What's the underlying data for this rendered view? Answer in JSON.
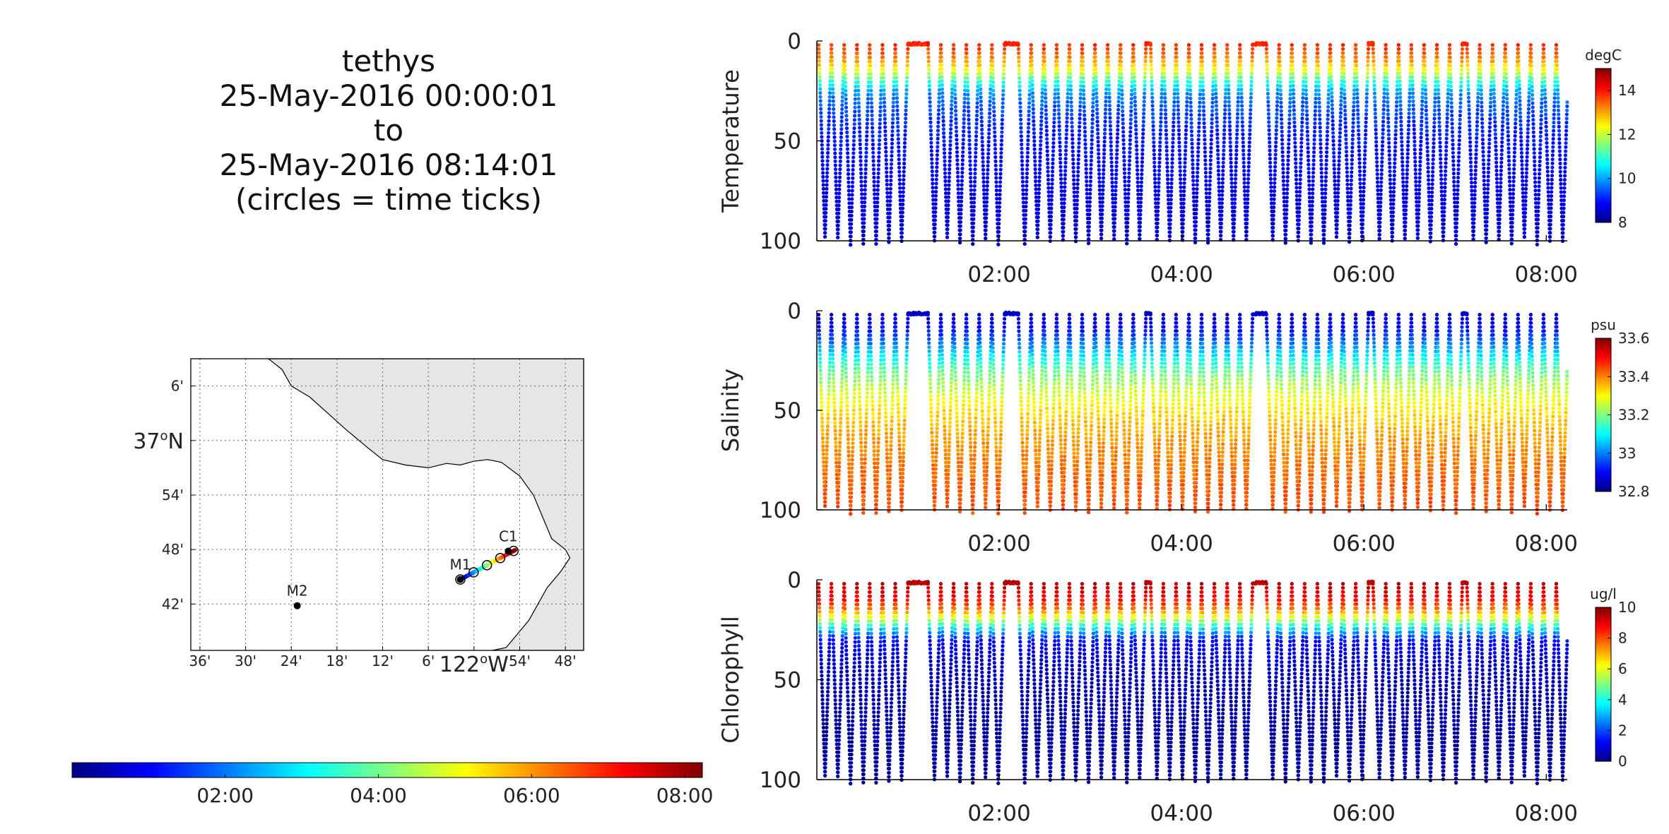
{
  "title": {
    "lines": [
      "tethys",
      "25-May-2016 00:00:01",
      "to",
      "25-May-2016 08:14:01",
      "(circles = time ticks)"
    ]
  },
  "colors": {
    "land": "#e6e6e6",
    "jet": [
      "#00007f",
      "#0000ff",
      "#007fff",
      "#00ffff",
      "#7fff7f",
      "#ffff00",
      "#ff7f00",
      "#ff0000",
      "#7f0000"
    ]
  },
  "chart_data": [
    {
      "type": "map",
      "lat_ticks": [
        "6'",
        "37°N",
        "54'",
        "48'",
        "42'"
      ],
      "lon_ticks": [
        "36'",
        "30'",
        "24'",
        "18'",
        "12'",
        "6'",
        "122°W",
        "54'",
        "48'"
      ],
      "grid": true,
      "stations": [
        {
          "name": "M2",
          "lon": -122.387,
          "lat": 36.697
        },
        {
          "name": "M1",
          "lon": -122.03,
          "lat": 36.745
        },
        {
          "name": "C1",
          "lon": -121.925,
          "lat": 36.797
        }
      ],
      "track": {
        "start": {
          "lon": -122.03,
          "lat": 36.745
        },
        "end": {
          "lon": -121.91,
          "lat": 36.799
        }
      }
    },
    {
      "type": "colorbar",
      "ticks": [
        "02:00",
        "04:00",
        "06:00",
        "08:00"
      ],
      "range_hours": [
        0,
        8.23
      ]
    },
    {
      "type": "scatter",
      "ylabel": "Temperature",
      "units": "degC",
      "ylim": [
        100,
        0
      ],
      "yticks": [
        "0",
        "50",
        "100"
      ],
      "xticks": [
        "02:00",
        "04:00",
        "06:00",
        "08:00"
      ],
      "xlim_hours": [
        0,
        8.23
      ],
      "clim": [
        8,
        15
      ],
      "cticks": [
        "8",
        "10",
        "12",
        "14"
      ],
      "profile_profile": {
        "depth": [
          0,
          5,
          10,
          15,
          20,
          25,
          30,
          40,
          50,
          60,
          70,
          80,
          90,
          100
        ],
        "value": [
          14.0,
          13.6,
          13.0,
          12.2,
          11.0,
          10.0,
          9.6,
          9.2,
          9.0,
          8.9,
          8.8,
          8.7,
          8.6,
          8.5
        ]
      }
    },
    {
      "type": "scatter",
      "ylabel": "Salinity",
      "units": "psu",
      "ylim": [
        100,
        0
      ],
      "yticks": [
        "0",
        "50",
        "100"
      ],
      "xticks": [
        "02:00",
        "04:00",
        "06:00",
        "08:00"
      ],
      "xlim_hours": [
        0,
        8.23
      ],
      "clim": [
        32.8,
        33.6
      ],
      "cticks": [
        "32.8",
        "33",
        "33.2",
        "33.4",
        "33.6"
      ],
      "profile_profile": {
        "depth": [
          0,
          5,
          10,
          15,
          20,
          25,
          30,
          40,
          50,
          60,
          70,
          80,
          90,
          100
        ],
        "value": [
          32.85,
          32.88,
          32.92,
          32.98,
          33.05,
          33.12,
          33.18,
          33.26,
          33.32,
          33.36,
          33.39,
          33.41,
          33.43,
          33.44
        ]
      }
    },
    {
      "type": "scatter",
      "ylabel": "Chlorophyll",
      "units": "ug/l",
      "ylim": [
        100,
        0
      ],
      "yticks": [
        "0",
        "50",
        "100"
      ],
      "xticks": [
        "02:00",
        "04:00",
        "06:00",
        "08:00"
      ],
      "xlim_hours": [
        0,
        8.23
      ],
      "clim": [
        0,
        10
      ],
      "cticks": [
        "0",
        "2",
        "4",
        "6",
        "8",
        "10"
      ],
      "profile_profile": {
        "depth": [
          0,
          5,
          10,
          15,
          20,
          25,
          30,
          40,
          50,
          60,
          70,
          80,
          90,
          100
        ],
        "value": [
          9.5,
          9.2,
          8.6,
          7.5,
          5.5,
          3.2,
          1.4,
          0.7,
          0.5,
          0.4,
          0.35,
          0.3,
          0.3,
          0.3
        ]
      }
    }
  ]
}
